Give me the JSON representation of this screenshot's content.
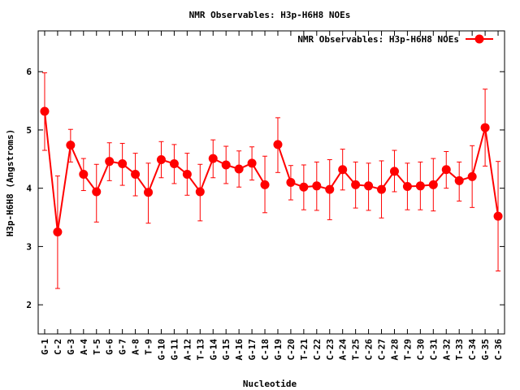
{
  "chart_data": {
    "type": "line",
    "title": "NMR Observables: H3p-H6H8 NOEs",
    "xlabel": "Nucleotide",
    "ylabel": "H3p-H6H8 (Angstroms)",
    "ylim": [
      1.5,
      6.7
    ],
    "yticks": [
      2,
      3,
      4,
      5,
      6
    ],
    "grid": false,
    "legend_position": "top-right",
    "color": "#ff0000",
    "x": [
      1,
      2,
      3,
      4,
      5,
      6,
      7,
      8,
      9,
      10,
      11,
      12,
      13,
      14,
      15,
      16,
      17,
      18,
      19,
      20,
      21,
      22,
      23,
      24,
      25,
      26,
      27,
      28,
      29,
      30,
      31,
      32,
      33,
      34,
      35,
      36
    ],
    "categories": [
      "G-1",
      "C-2",
      "G-3",
      "A-4",
      "T-5",
      "G-6",
      "G-7",
      "A-8",
      "T-9",
      "G-10",
      "G-11",
      "A-12",
      "T-13",
      "G-14",
      "G-15",
      "A-16",
      "G-17",
      "C-18",
      "G-19",
      "C-20",
      "T-21",
      "C-22",
      "C-23",
      "A-24",
      "T-25",
      "C-26",
      "C-27",
      "A-28",
      "T-29",
      "C-30",
      "C-31",
      "A-32",
      "T-33",
      "C-34",
      "G-35",
      "C-36"
    ],
    "series": [
      {
        "name": "NMR Observables: H3p-H6H8 NOEs",
        "values": [
          5.32,
          3.25,
          4.74,
          4.24,
          3.94,
          4.46,
          4.42,
          4.24,
          3.93,
          4.49,
          4.42,
          4.24,
          3.94,
          4.51,
          4.4,
          4.33,
          4.43,
          4.06,
          4.75,
          4.1,
          4.02,
          4.04,
          3.98,
          4.32,
          4.06,
          4.04,
          3.98,
          4.29,
          4.03,
          4.04,
          4.06,
          4.32,
          4.13,
          4.2,
          5.04,
          3.52
        ],
        "err_low": [
          4.65,
          2.28,
          4.45,
          3.96,
          3.42,
          4.13,
          4.05,
          3.87,
          3.4,
          4.18,
          4.08,
          3.88,
          3.44,
          4.18,
          4.08,
          4.02,
          4.14,
          3.58,
          4.27,
          3.8,
          3.63,
          3.62,
          3.46,
          3.97,
          3.66,
          3.62,
          3.49,
          3.94,
          3.63,
          3.63,
          3.61,
          4.0,
          3.78,
          3.67,
          4.38,
          2.58
        ],
        "err_high": [
          5.98,
          4.21,
          5.01,
          4.51,
          4.41,
          4.78,
          4.77,
          4.6,
          4.43,
          4.8,
          4.75,
          4.6,
          4.41,
          4.83,
          4.72,
          4.64,
          4.71,
          4.55,
          5.21,
          4.39,
          4.4,
          4.45,
          4.49,
          4.67,
          4.45,
          4.43,
          4.47,
          4.65,
          4.43,
          4.45,
          4.51,
          4.63,
          4.45,
          4.73,
          5.7,
          4.46
        ]
      }
    ],
    "gaps_after": [
      "C-18"
    ]
  }
}
